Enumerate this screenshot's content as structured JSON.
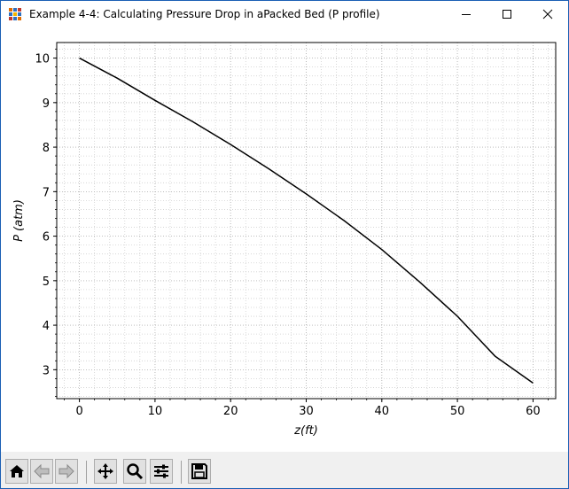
{
  "window": {
    "title": "Example 4-4: Calculating Pressure Drop in aPacked Bed (P profile)",
    "icon": "matplotlib-figure-icon"
  },
  "controls": {
    "minimize_icon": "minimize-icon",
    "maximize_icon": "maximize-icon",
    "close_icon": "close-icon"
  },
  "toolbar": {
    "buttons": [
      {
        "icon": "home-icon"
      },
      {
        "icon": "back-arrow-icon"
      },
      {
        "icon": "forward-arrow-icon"
      },
      {
        "icon": "pan-icon"
      },
      {
        "icon": "zoom-icon"
      },
      {
        "icon": "configure-subplots-icon"
      },
      {
        "icon": "save-icon"
      }
    ]
  },
  "chart_data": {
    "type": "line",
    "title": "",
    "xlabel": "z(ft)",
    "ylabel": "P (atm)",
    "xlim": [
      -3,
      63
    ],
    "ylim": [
      2.35,
      10.35
    ],
    "x_ticks": [
      0,
      10,
      20,
      30,
      40,
      50,
      60
    ],
    "y_ticks": [
      3,
      4,
      5,
      6,
      7,
      8,
      9,
      10
    ],
    "grid": "major and minor, dotted",
    "series": [
      {
        "color": "#000000",
        "x": [
          0,
          5,
          10,
          15,
          20,
          25,
          30,
          35,
          40,
          45,
          50,
          55,
          60
        ],
        "y": [
          10.0,
          9.55,
          9.05,
          8.57,
          8.06,
          7.52,
          6.95,
          6.35,
          5.7,
          4.97,
          4.2,
          3.3,
          2.7
        ]
      }
    ]
  }
}
